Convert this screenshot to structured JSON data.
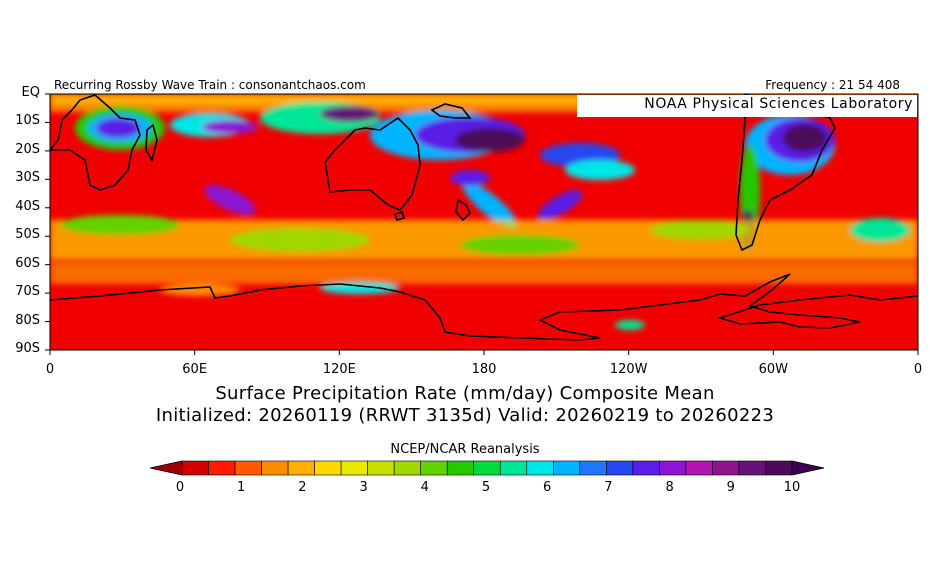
{
  "header": {
    "left_text": "Recurring Rossby Wave Train : consonantchaos.com",
    "right_text": "Frequency : 21 54 408",
    "badge": "NOAA Physical Sciences Laboratory"
  },
  "map": {
    "lat_labels": [
      "EQ",
      "10S",
      "20S",
      "30S",
      "40S",
      "50S",
      "60S",
      "70S",
      "80S",
      "90S"
    ],
    "lon_labels": [
      "0",
      "60E",
      "120E",
      "180",
      "120W",
      "60W",
      "0"
    ],
    "background_color": "#f00000",
    "coastline_color": "#000000"
  },
  "title": {
    "line1": "Surface Precipitation Rate (mm/day) Composite Mean",
    "line2": "Initialized: 20260119 (RRWT 3135d) Valid: 20260219 to 20260223"
  },
  "source": "NCEP/NCAR Reanalysis",
  "colorbar": {
    "tick_labels": [
      "0",
      "1",
      "2",
      "3",
      "4",
      "5",
      "6",
      "7",
      "8",
      "9",
      "10"
    ],
    "min": 0,
    "max": 10,
    "colors": [
      "#d20000",
      "#ff1a00",
      "#ff5a00",
      "#ff8c00",
      "#ffb000",
      "#ffd800",
      "#e8e800",
      "#c8e000",
      "#a0d800",
      "#64d200",
      "#28c800",
      "#00dc3c",
      "#00e696",
      "#00e6e6",
      "#00b4ff",
      "#1e78ff",
      "#2846f0",
      "#5a1ee6",
      "#8c14d2",
      "#b414b4",
      "#8c148c",
      "#641478",
      "#4b0a5a"
    ],
    "arrow_left_color": "#a00000",
    "arrow_right_color": "#3c0050"
  }
}
